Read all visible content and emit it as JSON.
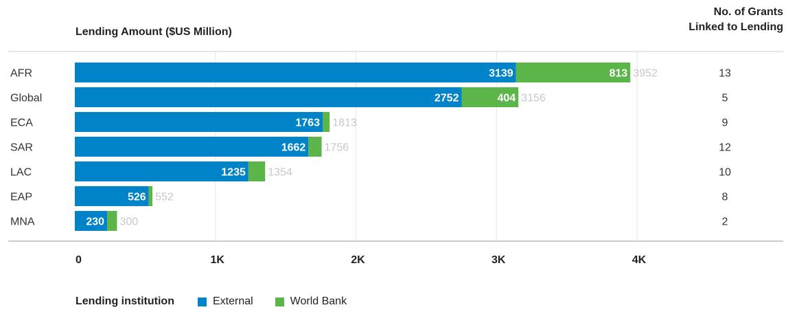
{
  "header": {
    "amount_label": "Lending Amount ($US Million)",
    "grants_label_line1": "No. of Grants",
    "grants_label_line2": "Linked to Lending"
  },
  "legend": {
    "title": "Lending institution",
    "items": [
      {
        "label": "External",
        "color": "#0083c9"
      },
      {
        "label": "World Bank",
        "color": "#5bb548"
      }
    ]
  },
  "chart_data": {
    "type": "bar",
    "orientation": "horizontal",
    "stacked": true,
    "categories": [
      "AFR",
      "Global",
      "ECA",
      "SAR",
      "LAC",
      "EAP",
      "MNA"
    ],
    "series": [
      {
        "name": "External",
        "values": [
          3139,
          2752,
          1763,
          1662,
          1235,
          526,
          230
        ],
        "color": "#0083c9"
      },
      {
        "name": "World Bank",
        "values": [
          813,
          404,
          50,
          94,
          119,
          26,
          70
        ],
        "color": "#5bb548"
      }
    ],
    "value_labels_external": [
      "3139",
      "2752",
      "1763",
      "1662",
      "1235",
      "526",
      "230"
    ],
    "value_labels_world_bank": [
      "813",
      "404",
      "",
      "",
      "",
      "",
      ""
    ],
    "totals": [
      "3952",
      "3156",
      "1813",
      "1756",
      "1354",
      "552",
      "300"
    ],
    "grants": [
      "13",
      "5",
      "9",
      "12",
      "10",
      "8",
      "2"
    ],
    "x_ticks": [
      0,
      1000,
      2000,
      3000,
      4000
    ],
    "x_tick_labels": [
      "0",
      "1K",
      "2K",
      "3K",
      "4K"
    ],
    "xlim": [
      0,
      4000
    ],
    "grid": true
  }
}
